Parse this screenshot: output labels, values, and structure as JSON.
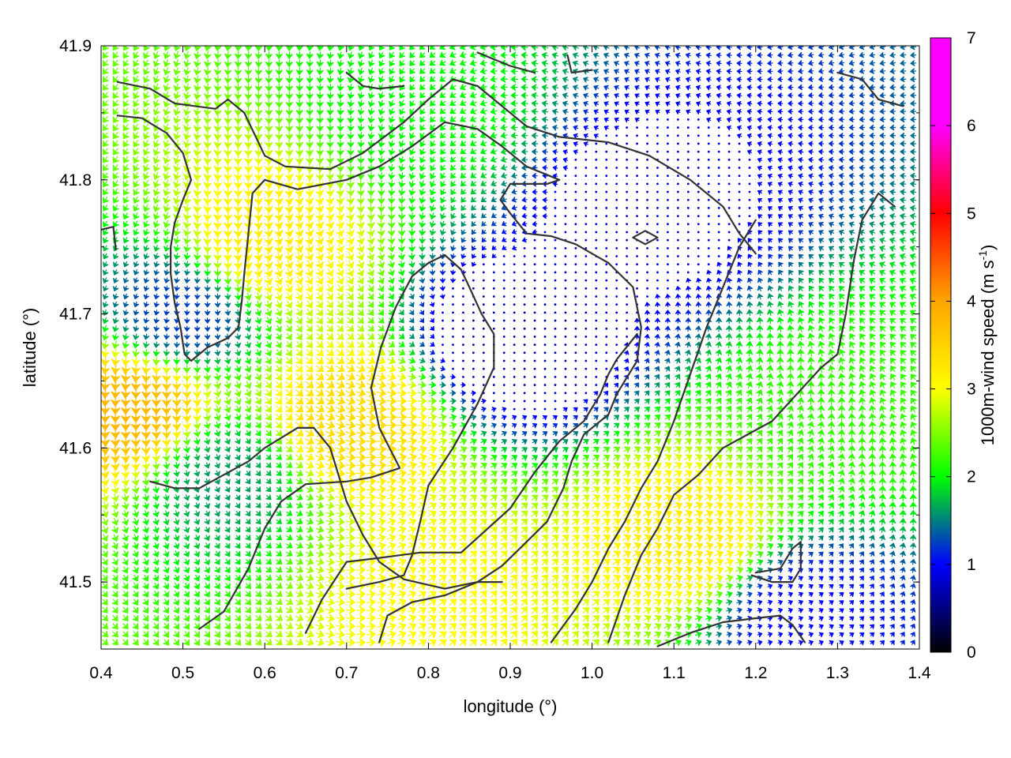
{
  "chart_data": {
    "type": "vector-field",
    "title": "",
    "xlabel": "longitude (°)",
    "ylabel": "latitude (°)",
    "xlim": [
      0.4,
      1.4
    ],
    "ylim": [
      41.45,
      41.9
    ],
    "xticks": [
      "0.4",
      "0.5",
      "0.6",
      "0.7",
      "0.8",
      "0.9",
      "1.0",
      "1.1",
      "1.2",
      "1.3",
      "1.4"
    ],
    "yticks": [
      "41.5",
      "41.6",
      "41.7",
      "41.8",
      "41.9"
    ],
    "grid": true,
    "colorbar": {
      "label": "1000m-wind speed (m s⁻¹)",
      "label_parts": [
        "1000m-wind speed (m s",
        "-1",
        ")"
      ],
      "range": [
        0,
        7
      ],
      "ticks": [
        "0",
        "1",
        "2",
        "3",
        "4",
        "5",
        "6",
        "7"
      ],
      "colors": [
        "#000000",
        "#0000ff",
        "#00ff00",
        "#ffff00",
        "#ffa500",
        "#ff0000",
        "#ff00ff",
        "#ff00ff"
      ]
    },
    "regions": [
      {
        "lon": 0.5,
        "lat": 41.7,
        "speed": 1.2
      },
      {
        "lon": 0.6,
        "lat": 41.75,
        "speed": 3.2
      },
      {
        "lon": 0.7,
        "lat": 41.62,
        "speed": 3.4
      },
      {
        "lon": 0.9,
        "lat": 41.68,
        "speed": 0.6
      },
      {
        "lon": 1.05,
        "lat": 41.78,
        "speed": 0.8
      },
      {
        "lon": 1.12,
        "lat": 41.53,
        "speed": 3.2
      },
      {
        "lon": 0.8,
        "lat": 41.49,
        "speed": 3.0
      },
      {
        "lon": 0.44,
        "lat": 41.63,
        "speed": 3.8
      },
      {
        "lon": 1.3,
        "lat": 41.62,
        "speed": 2.2
      },
      {
        "lon": 1.25,
        "lat": 41.48,
        "speed": 1.0
      },
      {
        "lon": 0.55,
        "lat": 41.58,
        "speed": 1.6
      },
      {
        "lon": 0.8,
        "lat": 41.85,
        "speed": 2.0
      }
    ],
    "contours": [
      [
        [
          0.42,
          41.873
        ],
        [
          0.46,
          41.868
        ],
        [
          0.49,
          41.857
        ],
        [
          0.54,
          41.853
        ],
        [
          0.555,
          41.86
        ],
        [
          0.575,
          41.85
        ],
        [
          0.6,
          41.818
        ],
        [
          0.625,
          41.81
        ],
        [
          0.68,
          41.808
        ],
        [
          0.72,
          41.82
        ],
        [
          0.77,
          41.843
        ],
        [
          0.8,
          41.86
        ],
        [
          0.83,
          41.875
        ],
        [
          0.86,
          41.87
        ],
        [
          0.92,
          41.84
        ],
        [
          0.96,
          41.832
        ],
        [
          1.02,
          41.828
        ],
        [
          1.07,
          41.818
        ],
        [
          1.12,
          41.8
        ],
        [
          1.16,
          41.78
        ],
        [
          1.18,
          41.76
        ],
        [
          1.2,
          41.745
        ]
      ],
      [
        [
          0.42,
          41.848
        ],
        [
          0.45,
          41.846
        ],
        [
          0.48,
          41.835
        ],
        [
          0.5,
          41.82
        ],
        [
          0.51,
          41.8
        ],
        [
          0.5,
          41.785
        ],
        [
          0.49,
          41.768
        ],
        [
          0.485,
          41.75
        ],
        [
          0.485,
          41.73
        ],
        [
          0.49,
          41.708
        ],
        [
          0.497,
          41.69
        ],
        [
          0.502,
          41.67
        ],
        [
          0.51,
          41.665
        ],
        [
          0.53,
          41.675
        ],
        [
          0.555,
          41.682
        ],
        [
          0.568,
          41.69
        ],
        [
          0.572,
          41.71
        ],
        [
          0.575,
          41.73
        ],
        [
          0.58,
          41.76
        ],
        [
          0.585,
          41.79
        ],
        [
          0.6,
          41.8
        ],
        [
          0.64,
          41.793
        ],
        [
          0.7,
          41.8
        ],
        [
          0.74,
          41.81
        ],
        [
          0.78,
          41.825
        ],
        [
          0.82,
          41.843
        ],
        [
          0.86,
          41.838
        ],
        [
          0.89,
          41.825
        ],
        [
          0.92,
          41.81
        ],
        [
          0.96,
          41.8
        ],
        [
          0.945,
          41.797
        ],
        [
          0.9,
          41.797
        ],
        [
          0.888,
          41.785
        ],
        [
          0.9,
          41.775
        ],
        [
          0.92,
          41.76
        ],
        [
          0.95,
          41.758
        ],
        [
          0.98,
          41.752
        ],
        [
          1.0,
          41.745
        ],
        [
          1.02,
          41.738
        ],
        [
          1.05,
          41.72
        ],
        [
          1.06,
          41.69
        ],
        [
          1.055,
          41.665
        ],
        [
          1.04,
          41.65
        ],
        [
          1.03,
          41.64
        ],
        [
          1.02,
          41.625
        ],
        [
          0.99,
          41.61
        ],
        [
          0.975,
          41.59
        ],
        [
          0.965,
          41.57
        ],
        [
          0.945,
          41.545
        ],
        [
          0.92,
          41.53
        ],
        [
          0.89,
          41.512
        ],
        [
          0.86,
          41.5
        ],
        [
          0.82,
          41.495
        ],
        [
          0.77,
          41.502
        ],
        [
          0.74,
          41.515
        ],
        [
          0.72,
          41.535
        ],
        [
          0.7,
          41.56
        ],
        [
          0.68,
          41.6
        ],
        [
          0.66,
          41.615
        ],
        [
          0.64,
          41.615
        ],
        [
          0.6,
          41.6
        ],
        [
          0.58,
          41.59
        ],
        [
          0.55,
          41.58
        ],
        [
          0.52,
          41.57
        ],
        [
          0.49,
          41.57
        ],
        [
          0.46,
          41.575
        ]
      ],
      [
        [
          0.52,
          41.465
        ],
        [
          0.55,
          41.478
        ],
        [
          0.58,
          41.51
        ],
        [
          0.6,
          41.54
        ],
        [
          0.62,
          41.56
        ],
        [
          0.65,
          41.573
        ],
        [
          0.7,
          41.575
        ],
        [
          0.73,
          41.578
        ],
        [
          0.765,
          41.585
        ],
        [
          0.74,
          41.615
        ],
        [
          0.73,
          41.645
        ],
        [
          0.742,
          41.675
        ],
        [
          0.76,
          41.705
        ],
        [
          0.78,
          41.728
        ],
        [
          0.8,
          41.738
        ],
        [
          0.82,
          41.744
        ],
        [
          0.84,
          41.733
        ],
        [
          0.85,
          41.72
        ],
        [
          0.865,
          41.7
        ],
        [
          0.88,
          41.685
        ],
        [
          0.88,
          41.66
        ],
        [
          0.86,
          41.633
        ],
        [
          0.83,
          41.6
        ],
        [
          0.8,
          41.572
        ],
        [
          0.79,
          41.545
        ],
        [
          0.78,
          41.52
        ],
        [
          0.77,
          41.505
        ],
        [
          0.74,
          41.5
        ],
        [
          0.7,
          41.495
        ]
      ],
      [
        [
          0.65,
          41.462
        ],
        [
          0.67,
          41.487
        ],
        [
          0.7,
          41.515
        ],
        [
          0.74,
          41.518
        ],
        [
          0.79,
          41.522
        ],
        [
          0.84,
          41.522
        ],
        [
          0.9,
          41.555
        ],
        [
          0.93,
          41.582
        ],
        [
          0.96,
          41.605
        ],
        [
          0.99,
          41.62
        ],
        [
          1.01,
          41.64
        ],
        [
          1.02,
          41.655
        ],
        [
          1.03,
          41.666
        ],
        [
          1.055,
          41.685
        ]
      ],
      [
        [
          0.95,
          41.455
        ],
        [
          0.98,
          41.48
        ],
        [
          1.0,
          41.5
        ],
        [
          1.02,
          41.525
        ],
        [
          1.04,
          41.545
        ],
        [
          1.06,
          41.57
        ],
        [
          1.08,
          41.59
        ],
        [
          1.1,
          41.62
        ],
        [
          1.12,
          41.655
        ],
        [
          1.14,
          41.69
        ],
        [
          1.16,
          41.72
        ],
        [
          1.18,
          41.75
        ],
        [
          1.195,
          41.765
        ],
        [
          1.2,
          41.77
        ]
      ],
      [
        [
          1.02,
          41.455
        ],
        [
          1.04,
          41.49
        ],
        [
          1.06,
          41.52
        ],
        [
          1.08,
          41.54
        ],
        [
          1.1,
          41.565
        ],
        [
          1.13,
          41.58
        ],
        [
          1.16,
          41.6
        ],
        [
          1.19,
          41.61
        ],
        [
          1.22,
          41.62
        ],
        [
          1.25,
          41.64
        ],
        [
          1.28,
          41.66
        ],
        [
          1.3,
          41.67
        ],
        [
          1.31,
          41.7
        ],
        [
          1.32,
          41.74
        ],
        [
          1.33,
          41.77
        ],
        [
          1.35,
          41.79
        ],
        [
          1.37,
          41.78
        ]
      ],
      [
        [
          1.195,
          41.505
        ],
        [
          1.22,
          41.5
        ],
        [
          1.245,
          41.5
        ],
        [
          1.255,
          41.51
        ],
        [
          1.255,
          41.53
        ],
        [
          1.245,
          41.525
        ],
        [
          1.23,
          41.51
        ],
        [
          1.2,
          41.507
        ]
      ],
      [
        [
          1.05,
          41.757
        ],
        [
          1.065,
          41.752
        ],
        [
          1.08,
          41.757
        ],
        [
          1.065,
          41.762
        ],
        [
          1.05,
          41.757
        ]
      ],
      [
        [
          0.38,
          41.76
        ],
        [
          0.415,
          41.765
        ],
        [
          0.418,
          41.748
        ]
      ],
      [
        [
          0.74,
          41.455
        ],
        [
          0.745,
          41.465
        ],
        [
          0.75,
          41.475
        ],
        [
          0.78,
          41.485
        ],
        [
          0.82,
          41.49
        ],
        [
          0.86,
          41.5
        ],
        [
          0.89,
          41.5
        ]
      ],
      [
        [
          1.08,
          41.452
        ],
        [
          1.12,
          41.462
        ],
        [
          1.16,
          41.47
        ],
        [
          1.2,
          41.473
        ],
        [
          1.23,
          41.475
        ],
        [
          1.245,
          41.468
        ],
        [
          1.26,
          41.455
        ]
      ],
      [
        [
          0.7,
          41.88
        ],
        [
          0.72,
          41.87
        ],
        [
          0.74,
          41.868
        ],
        [
          0.77,
          41.87
        ]
      ],
      [
        [
          0.86,
          41.895
        ],
        [
          0.9,
          41.885
        ],
        [
          0.93,
          41.88
        ]
      ],
      [
        [
          0.97,
          41.893
        ],
        [
          0.975,
          41.88
        ],
        [
          1.0,
          41.882
        ]
      ],
      [
        [
          1.3,
          41.88
        ],
        [
          1.33,
          41.875
        ],
        [
          1.35,
          41.86
        ],
        [
          1.38,
          41.855
        ]
      ]
    ]
  }
}
